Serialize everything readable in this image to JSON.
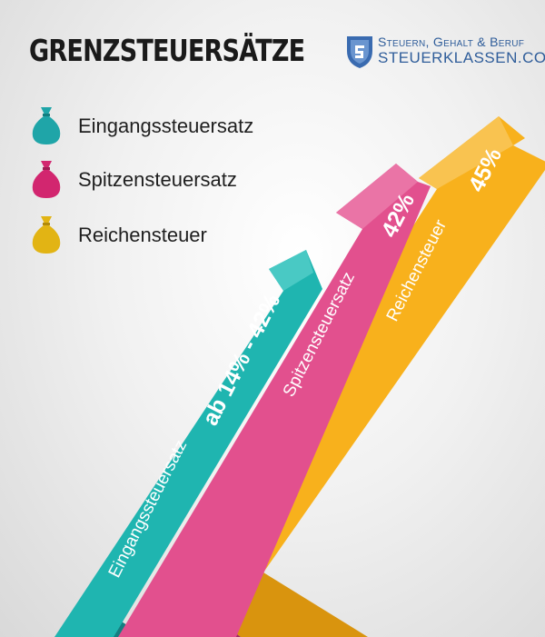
{
  "title": "GRENZSTEUERSÄTZE",
  "brand": {
    "line1": "Steuern, Gehalt & Beruf",
    "line2": "STEUERKLASSEN.COM"
  },
  "legend": [
    {
      "label": "Eingangssteuersatz",
      "color": "#1fa5a8",
      "icon": "money-bag-icon"
    },
    {
      "label": "Spitzensteuersatz",
      "color": "#d2266f",
      "icon": "money-bag-icon"
    },
    {
      "label": "Reichensteuer",
      "color": "#e2b414",
      "icon": "money-bag-icon"
    }
  ],
  "arrows": [
    {
      "label": "Eingangssteuersatz",
      "value": "ab 14% - 42%",
      "color": "#1fb5b0"
    },
    {
      "label": "Spitzensteuersatz",
      "value": "42%",
      "color": "#e2508e"
    },
    {
      "label": "Reichensteuer",
      "value": "45%",
      "color": "#f8b11c"
    }
  ]
}
